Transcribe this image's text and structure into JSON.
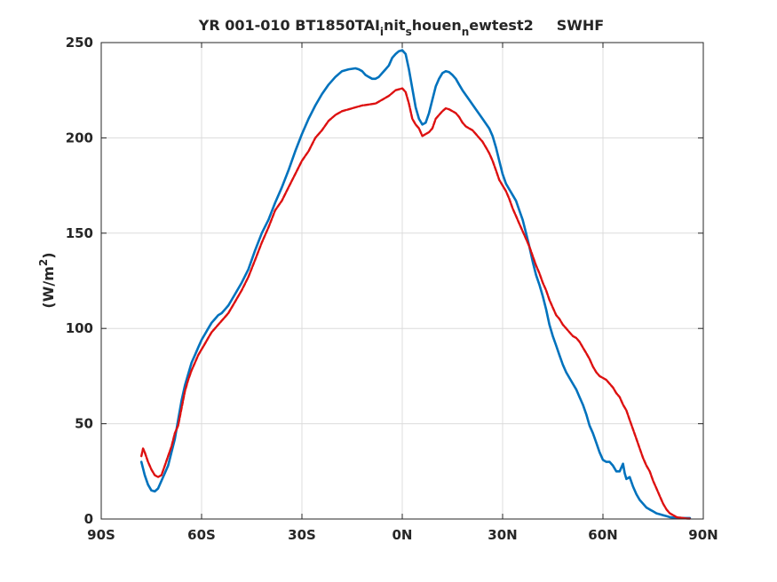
{
  "chart_data": {
    "type": "line",
    "title": {
      "main": "YR 001-010 BT1850TAI",
      "sub1": "i",
      "mid1": "nit",
      "sub2": "s",
      "mid2": "houen",
      "sub3": "n",
      "end": "ewtest2",
      "var": "SWHF"
    },
    "xlabel": "",
    "ylabel": {
      "base": "(W/m",
      "sup": "2",
      "close": ")"
    },
    "xlim": [
      -90,
      90
    ],
    "ylim": [
      0,
      250
    ],
    "grid": true,
    "x_ticks": [
      {
        "value": -90,
        "label": "90S"
      },
      {
        "value": -60,
        "label": "60S"
      },
      {
        "value": -30,
        "label": "30S"
      },
      {
        "value": 0,
        "label": "0N"
      },
      {
        "value": 30,
        "label": "30N"
      },
      {
        "value": 60,
        "label": "60N"
      },
      {
        "value": 90,
        "label": "90N"
      }
    ],
    "y_ticks": [
      {
        "value": 0,
        "label": "0"
      },
      {
        "value": 50,
        "label": "50"
      },
      {
        "value": 100,
        "label": "100"
      },
      {
        "value": 150,
        "label": "150"
      },
      {
        "value": 200,
        "label": "200"
      },
      {
        "value": 250,
        "label": "250"
      }
    ],
    "series": [
      {
        "color": "#0072bd",
        "style": "solid",
        "points": [
          [
            -78,
            30
          ],
          [
            -77,
            23
          ],
          [
            -76,
            18
          ],
          [
            -75,
            15
          ],
          [
            -74,
            14.5
          ],
          [
            -73,
            16
          ],
          [
            -72,
            20
          ],
          [
            -71,
            24
          ],
          [
            -70,
            28
          ],
          [
            -69,
            35
          ],
          [
            -68,
            42
          ],
          [
            -67,
            52
          ],
          [
            -66,
            62
          ],
          [
            -65,
            70
          ],
          [
            -64,
            76
          ],
          [
            -63,
            82
          ],
          [
            -62,
            86
          ],
          [
            -61,
            90
          ],
          [
            -60,
            94
          ],
          [
            -59,
            97
          ],
          [
            -58,
            100
          ],
          [
            -57,
            103
          ],
          [
            -56,
            105
          ],
          [
            -55,
            107
          ],
          [
            -54,
            108
          ],
          [
            -53,
            110
          ],
          [
            -52,
            112
          ],
          [
            -51,
            115
          ],
          [
            -50,
            118
          ],
          [
            -48,
            124
          ],
          [
            -46,
            131
          ],
          [
            -44,
            141
          ],
          [
            -42,
            150
          ],
          [
            -40,
            157
          ],
          [
            -38,
            166
          ],
          [
            -36,
            174
          ],
          [
            -34,
            183
          ],
          [
            -32,
            193
          ],
          [
            -30,
            202
          ],
          [
            -28,
            210
          ],
          [
            -26,
            217
          ],
          [
            -24,
            223
          ],
          [
            -22,
            228
          ],
          [
            -20,
            232
          ],
          [
            -18,
            235
          ],
          [
            -16,
            236
          ],
          [
            -14,
            236.5
          ],
          [
            -13,
            236
          ],
          [
            -12,
            235
          ],
          [
            -11,
            233
          ],
          [
            -10,
            232
          ],
          [
            -9,
            231
          ],
          [
            -8,
            231
          ],
          [
            -7,
            232
          ],
          [
            -6,
            234
          ],
          [
            -5,
            236
          ],
          [
            -4,
            238
          ],
          [
            -3,
            242
          ],
          [
            -2,
            244
          ],
          [
            -1,
            245.5
          ],
          [
            0,
            246
          ],
          [
            1,
            244
          ],
          [
            2,
            236
          ],
          [
            3,
            226
          ],
          [
            4,
            216
          ],
          [
            5,
            210
          ],
          [
            6,
            207
          ],
          [
            7,
            208
          ],
          [
            8,
            213
          ],
          [
            9,
            220
          ],
          [
            10,
            227
          ],
          [
            11,
            231
          ],
          [
            12,
            234
          ],
          [
            13,
            235
          ],
          [
            14,
            234.5
          ],
          [
            15,
            233
          ],
          [
            16,
            231
          ],
          [
            17,
            228
          ],
          [
            18,
            225
          ],
          [
            20,
            220
          ],
          [
            22,
            215
          ],
          [
            24,
            210
          ],
          [
            26,
            205
          ],
          [
            27,
            201
          ],
          [
            28,
            195
          ],
          [
            29,
            188
          ],
          [
            30,
            181
          ],
          [
            31,
            176
          ],
          [
            32,
            173
          ],
          [
            33,
            170
          ],
          [
            34,
            167
          ],
          [
            35,
            162
          ],
          [
            36,
            157
          ],
          [
            37,
            150
          ],
          [
            38,
            143
          ],
          [
            39,
            135
          ],
          [
            40,
            128
          ],
          [
            41,
            123
          ],
          [
            42,
            117
          ],
          [
            43,
            110
          ],
          [
            44,
            102
          ],
          [
            45,
            96
          ],
          [
            46,
            91
          ],
          [
            47,
            86
          ],
          [
            48,
            81
          ],
          [
            49,
            77
          ],
          [
            50,
            74
          ],
          [
            51,
            71
          ],
          [
            52,
            68
          ],
          [
            53,
            64
          ],
          [
            54,
            60
          ],
          [
            55,
            55
          ],
          [
            56,
            49
          ],
          [
            57,
            45
          ],
          [
            58,
            40
          ],
          [
            59,
            35
          ],
          [
            60,
            31
          ],
          [
            61,
            30
          ],
          [
            62,
            30
          ],
          [
            63,
            28
          ],
          [
            64,
            25
          ],
          [
            65,
            25
          ],
          [
            66,
            29
          ],
          [
            66.5,
            24
          ],
          [
            67,
            21
          ],
          [
            68,
            22
          ],
          [
            69,
            17
          ],
          [
            70,
            13
          ],
          [
            71,
            10
          ],
          [
            72,
            8
          ],
          [
            73,
            6
          ],
          [
            74,
            5
          ],
          [
            75,
            4
          ],
          [
            76,
            3
          ],
          [
            77,
            2.5
          ],
          [
            78,
            2
          ],
          [
            79,
            1.5
          ],
          [
            80,
            1
          ],
          [
            81,
            0.8
          ],
          [
            82,
            0.7
          ],
          [
            83,
            0.6
          ],
          [
            84,
            0.5
          ],
          [
            85,
            0.5
          ],
          [
            86,
            0.5
          ]
        ]
      },
      {
        "color": "#dd1010",
        "style": "dashed",
        "points": [
          [
            -78,
            33
          ],
          [
            -77.5,
            37
          ],
          [
            -77,
            35
          ],
          [
            -76,
            30
          ],
          [
            -75,
            26
          ],
          [
            -74,
            23
          ],
          [
            -73,
            22
          ],
          [
            -72,
            23
          ],
          [
            -71,
            28
          ],
          [
            -70,
            33
          ],
          [
            -69,
            38
          ],
          [
            -68,
            45
          ],
          [
            -67,
            49
          ],
          [
            -66,
            58
          ],
          [
            -65,
            67
          ],
          [
            -64,
            73
          ],
          [
            -63,
            78
          ],
          [
            -62,
            82
          ],
          [
            -61,
            86
          ],
          [
            -60,
            89
          ],
          [
            -59,
            92
          ],
          [
            -58,
            95
          ],
          [
            -57,
            98
          ],
          [
            -56,
            100
          ],
          [
            -55,
            102
          ],
          [
            -54,
            104
          ],
          [
            -53,
            106
          ],
          [
            -52,
            108
          ],
          [
            -51,
            111
          ],
          [
            -50,
            114
          ],
          [
            -48,
            120
          ],
          [
            -46,
            127
          ],
          [
            -44,
            136
          ],
          [
            -42,
            145
          ],
          [
            -40,
            153
          ],
          [
            -38,
            162
          ],
          [
            -36,
            167
          ],
          [
            -34,
            174
          ],
          [
            -32,
            181
          ],
          [
            -30,
            188
          ],
          [
            -28,
            193
          ],
          [
            -26,
            200
          ],
          [
            -24,
            204
          ],
          [
            -22,
            209
          ],
          [
            -20,
            212
          ],
          [
            -18,
            214
          ],
          [
            -16,
            215
          ],
          [
            -14,
            216
          ],
          [
            -12,
            217
          ],
          [
            -10,
            217.5
          ],
          [
            -8,
            218
          ],
          [
            -6,
            220
          ],
          [
            -4,
            222
          ],
          [
            -2,
            225
          ],
          [
            0,
            226
          ],
          [
            1,
            224
          ],
          [
            2,
            218
          ],
          [
            3,
            210
          ],
          [
            4,
            207
          ],
          [
            5,
            205
          ],
          [
            6,
            201
          ],
          [
            7,
            202
          ],
          [
            8,
            203
          ],
          [
            9,
            205
          ],
          [
            10,
            210
          ],
          [
            11,
            212
          ],
          [
            12,
            214
          ],
          [
            13,
            215.5
          ],
          [
            14,
            215
          ],
          [
            15,
            214
          ],
          [
            16,
            213
          ],
          [
            17,
            211
          ],
          [
            18,
            208
          ],
          [
            19,
            206
          ],
          [
            20,
            205
          ],
          [
            21,
            204
          ],
          [
            22,
            202
          ],
          [
            23,
            200
          ],
          [
            24,
            198
          ],
          [
            25,
            195
          ],
          [
            26,
            192
          ],
          [
            27,
            188
          ],
          [
            28,
            183
          ],
          [
            29,
            178
          ],
          [
            30,
            175
          ],
          [
            31,
            172
          ],
          [
            32,
            168
          ],
          [
            33,
            163
          ],
          [
            34,
            159
          ],
          [
            35,
            155
          ],
          [
            36,
            151
          ],
          [
            37,
            147
          ],
          [
            38,
            143
          ],
          [
            39,
            138
          ],
          [
            40,
            133
          ],
          [
            41,
            129
          ],
          [
            42,
            124
          ],
          [
            43,
            120
          ],
          [
            44,
            115
          ],
          [
            45,
            111
          ],
          [
            46,
            107
          ],
          [
            47,
            105
          ],
          [
            48,
            102
          ],
          [
            49,
            100
          ],
          [
            50,
            98
          ],
          [
            51,
            96
          ],
          [
            52,
            95
          ],
          [
            53,
            93
          ],
          [
            54,
            90
          ],
          [
            55,
            87
          ],
          [
            56,
            84
          ],
          [
            57,
            80
          ],
          [
            58,
            77
          ],
          [
            59,
            75
          ],
          [
            60,
            74
          ],
          [
            61,
            73
          ],
          [
            62,
            71
          ],
          [
            63,
            69
          ],
          [
            64,
            66
          ],
          [
            65,
            64
          ],
          [
            66,
            60
          ],
          [
            67,
            57
          ],
          [
            68,
            52
          ],
          [
            69,
            47
          ],
          [
            70,
            42
          ],
          [
            71,
            37
          ],
          [
            72,
            32
          ],
          [
            73,
            28
          ],
          [
            74,
            25
          ],
          [
            75,
            20
          ],
          [
            76,
            16
          ],
          [
            77,
            12
          ],
          [
            78,
            8
          ],
          [
            79,
            5
          ],
          [
            80,
            3
          ],
          [
            81,
            2
          ],
          [
            82,
            1
          ],
          [
            83,
            0.7
          ],
          [
            84,
            0.5
          ],
          [
            85,
            0.3
          ],
          [
            86,
            0.2
          ]
        ]
      }
    ]
  }
}
